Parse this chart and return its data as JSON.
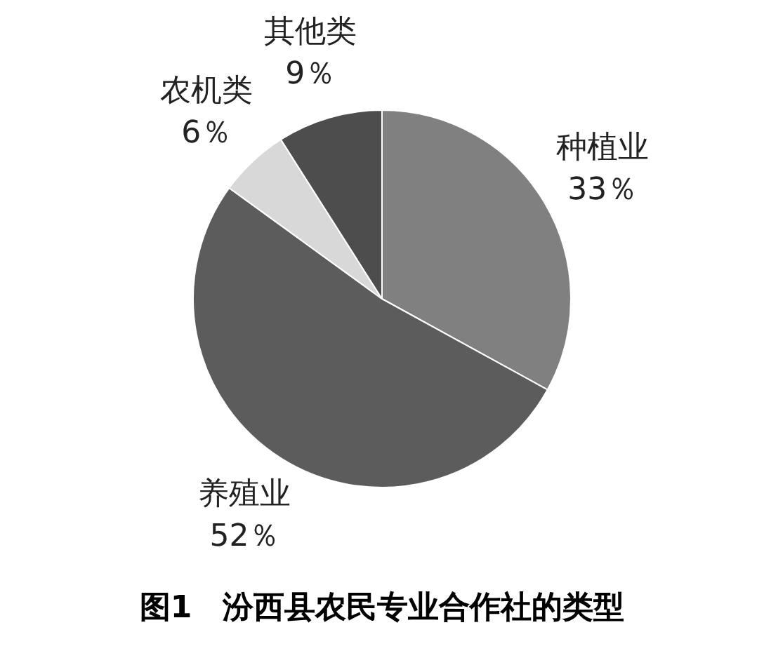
{
  "chart_data": {
    "type": "pie",
    "title": "图1　汾西县农民专业合作社的类型",
    "categories": [
      "种植业",
      "养殖业",
      "农机类",
      "其他类"
    ],
    "values": [
      33,
      52,
      6,
      9
    ],
    "value_labels": [
      "33％",
      "52％",
      "6％",
      "9％"
    ],
    "colors": [
      "#808080",
      "#5c5c5c",
      "#d8d8d8",
      "#4d4d4d"
    ],
    "legend": false
  }
}
